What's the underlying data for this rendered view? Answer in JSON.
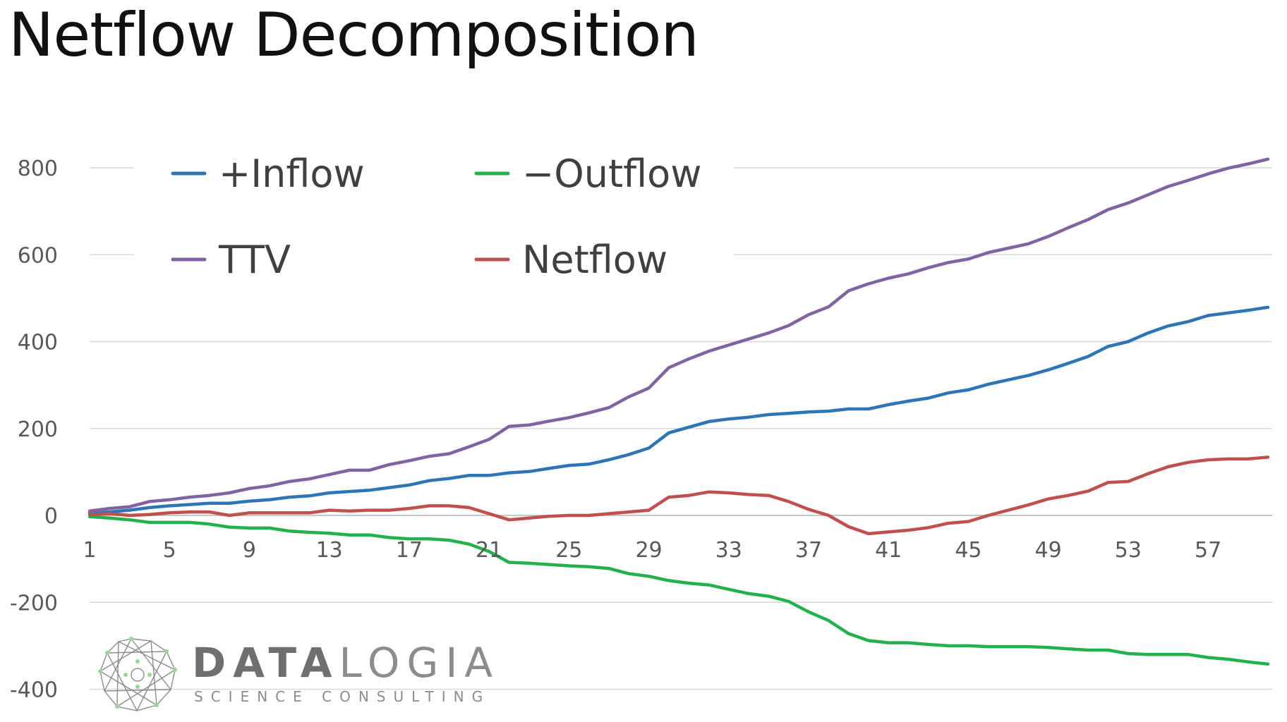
{
  "title": "Netflow Decomposition",
  "logo": {
    "name_bold": "DATA",
    "name_rest": "LOGIA",
    "tagline": "SCIENCE CONSULTING"
  },
  "chart_data": {
    "type": "line",
    "title": "",
    "xlabel": "",
    "ylabel": "",
    "grid": true,
    "legend_position": "top-left",
    "ylim": [
      -400,
      800
    ],
    "yticks": [
      800,
      600,
      400,
      200,
      0,
      -200,
      -400
    ],
    "x": [
      1,
      2,
      3,
      4,
      5,
      6,
      7,
      8,
      9,
      10,
      11,
      12,
      13,
      14,
      15,
      16,
      17,
      18,
      19,
      20,
      21,
      22,
      23,
      24,
      25,
      26,
      27,
      28,
      29,
      30,
      31,
      32,
      33,
      34,
      35,
      36,
      37,
      38,
      39,
      40,
      41,
      42,
      43,
      44,
      45,
      46,
      47,
      48,
      49,
      50,
      51,
      52,
      53,
      54,
      55,
      56,
      57,
      58,
      59,
      60
    ],
    "xticks": [
      1,
      5,
      9,
      13,
      17,
      21,
      25,
      29,
      33,
      37,
      41,
      45,
      49,
      53,
      57
    ],
    "series": [
      {
        "name": "+Inflow",
        "color": "#2e75b6",
        "values": [
          5,
          8,
          12,
          18,
          22,
          25,
          28,
          28,
          33,
          36,
          42,
          45,
          52,
          55,
          58,
          64,
          70,
          80,
          85,
          92,
          92,
          98,
          101,
          108,
          115,
          118,
          128,
          140,
          155,
          190,
          203,
          216,
          222,
          226,
          232,
          235,
          238,
          240,
          245,
          245,
          255,
          263,
          270,
          282,
          289,
          302,
          312,
          322,
          335,
          350,
          366,
          389,
          400,
          420,
          436,
          446,
          460,
          466,
          472,
          479
        ]
      },
      {
        "name": "−Outflow",
        "color": "#22b14c",
        "values": [
          -3,
          -6,
          -10,
          -16,
          -16,
          -16,
          -20,
          -27,
          -29,
          -29,
          -36,
          -39,
          -41,
          -45,
          -45,
          -51,
          -54,
          -54,
          -57,
          -66,
          -83,
          -108,
          -110,
          -113,
          -116,
          -118,
          -122,
          -134,
          -140,
          -150,
          -156,
          -160,
          -170,
          -180,
          -186,
          -198,
          -222,
          -242,
          -272,
          -288,
          -293,
          -293,
          -297,
          -300,
          -300,
          -302,
          -302,
          -302,
          -304,
          -307,
          -310,
          -310,
          -318,
          -320,
          -320,
          -320,
          -327,
          -331,
          -337,
          -342
        ]
      },
      {
        "name": "TTV",
        "color": "#8064a2",
        "values": [
          10,
          16,
          20,
          32,
          36,
          42,
          46,
          52,
          62,
          68,
          78,
          84,
          94,
          104,
          104,
          117,
          126,
          136,
          142,
          158,
          175,
          205,
          208,
          217,
          225,
          236,
          248,
          273,
          293,
          340,
          360,
          378,
          392,
          406,
          420,
          437,
          462,
          480,
          517,
          533,
          546,
          556,
          570,
          582,
          590,
          605,
          615,
          625,
          642,
          662,
          681,
          704,
          719,
          738,
          757,
          771,
          786,
          799,
          809,
          820
        ]
      },
      {
        "name": "Netflow",
        "color": "#c0504d",
        "values": [
          2,
          4,
          0,
          2,
          6,
          8,
          8,
          0,
          6,
          6,
          6,
          6,
          12,
          10,
          12,
          12,
          16,
          22,
          22,
          18,
          4,
          -10,
          -6,
          -2,
          0,
          0,
          4,
          8,
          12,
          42,
          46,
          54,
          52,
          48,
          46,
          32,
          14,
          0,
          -26,
          -42,
          -38,
          -34,
          -28,
          -18,
          -14,
          0,
          12,
          24,
          38,
          46,
          56,
          76,
          78,
          96,
          112,
          122,
          128,
          130,
          130,
          134
        ]
      }
    ]
  }
}
